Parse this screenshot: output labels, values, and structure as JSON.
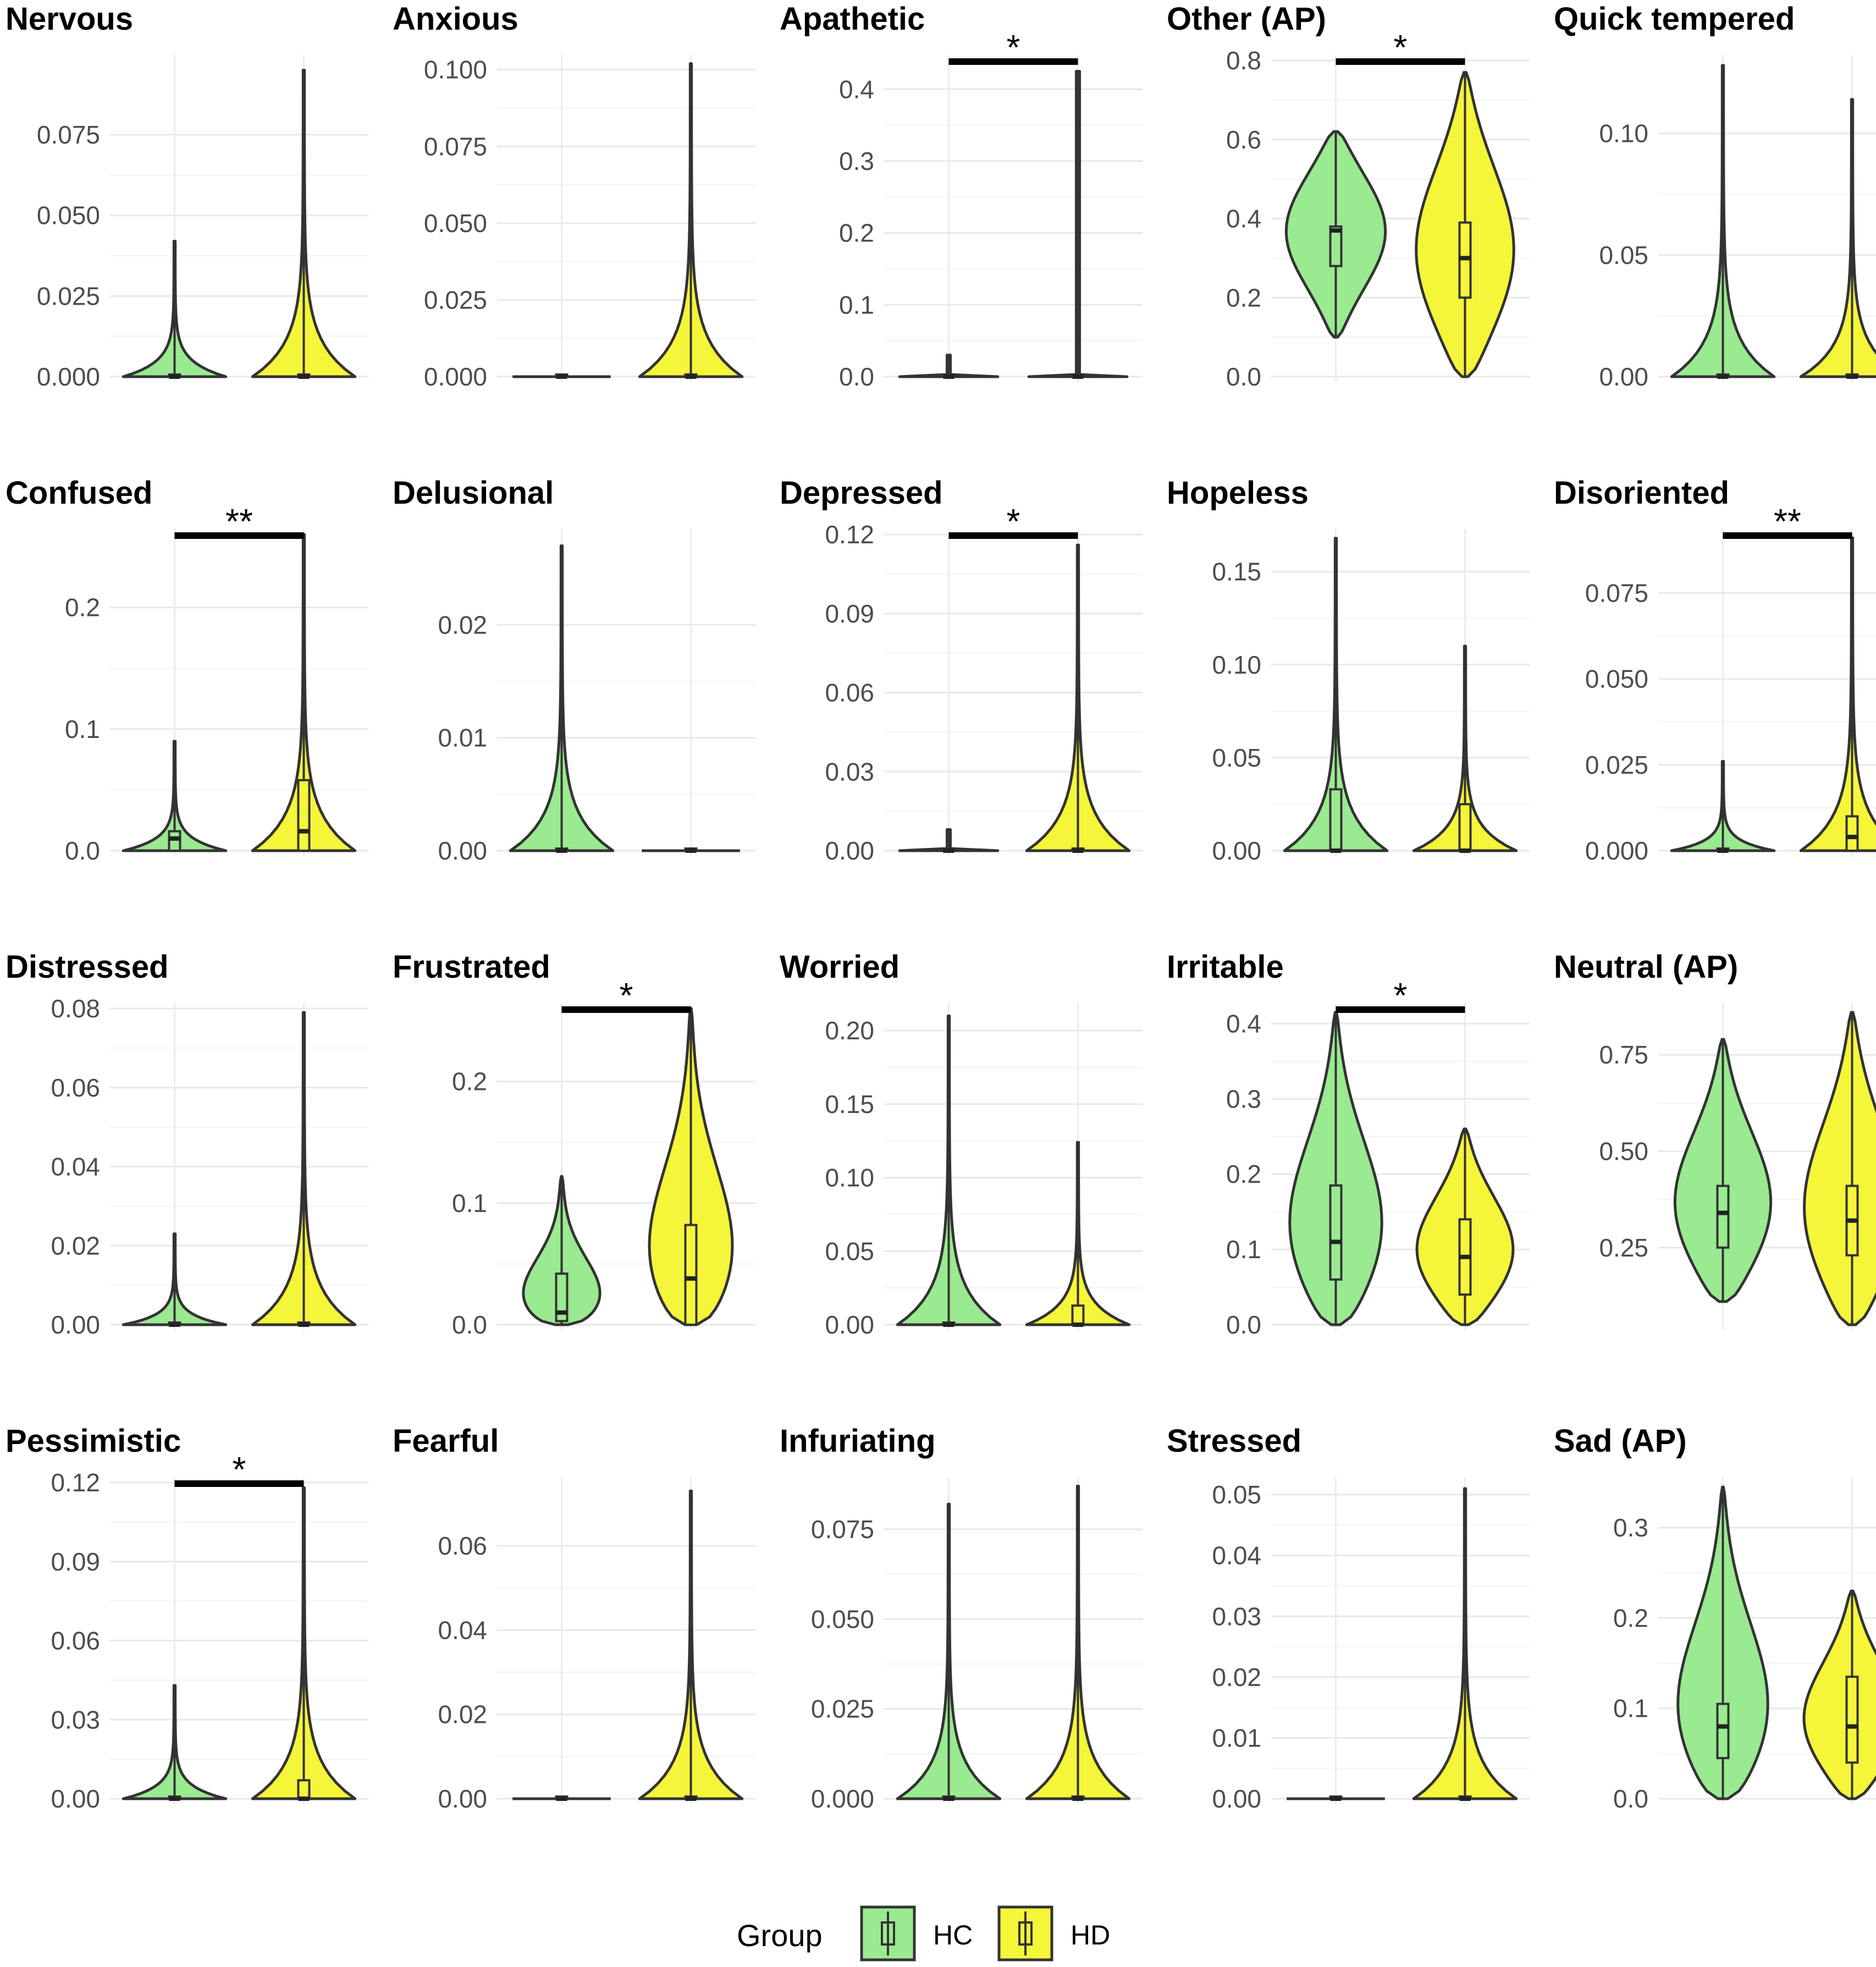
{
  "legend": {
    "title": "Group",
    "groups": [
      {
        "key": "HC",
        "label": "HC",
        "color": "#9aea91"
      },
      {
        "key": "HD",
        "label": "HD",
        "color": "#f5f53a"
      }
    ]
  },
  "chart_data": [
    {
      "type": "violin",
      "title": "Nervous",
      "ylim": [
        0,
        0.098
      ],
      "ticks": [
        0.0,
        0.025,
        0.05,
        0.075
      ],
      "tick_labels": [
        "0.000",
        "0.025",
        "0.050",
        "0.075"
      ],
      "series": [
        {
          "name": "HC",
          "max": 0.042,
          "q1": 0,
          "median": 0,
          "q3": 0,
          "shape": "spike"
        },
        {
          "name": "HD",
          "max": 0.095,
          "q1": 0,
          "median": 0,
          "q3": 0,
          "shape": "spike"
        }
      ]
    },
    {
      "type": "violin",
      "title": "Anxious",
      "ylim": [
        0,
        0.103
      ],
      "ticks": [
        0.0,
        0.025,
        0.05,
        0.075,
        0.1
      ],
      "tick_labels": [
        "0.000",
        "0.025",
        "0.050",
        "0.075",
        "0.100"
      ],
      "series": [
        {
          "name": "HC",
          "max": 0,
          "q1": 0,
          "median": 0,
          "q3": 0,
          "shape": "flat"
        },
        {
          "name": "HD",
          "max": 0.102,
          "q1": 0,
          "median": 0,
          "q3": 0,
          "shape": "spike"
        }
      ]
    },
    {
      "type": "violin",
      "title": "Apathetic",
      "ylim": [
        0,
        0.44
      ],
      "ticks": [
        0.0,
        0.1,
        0.2,
        0.3,
        0.4
      ],
      "tick_labels": [
        "0.0",
        "0.1",
        "0.2",
        "0.3",
        "0.4"
      ],
      "significance": "*",
      "series": [
        {
          "name": "HC",
          "max": 0.03,
          "q1": 0,
          "median": 0,
          "q3": 0,
          "shape": "flat"
        },
        {
          "name": "HD",
          "max": 0.425,
          "q1": 0,
          "median": 0,
          "q3": 0,
          "shape": "flat"
        }
      ]
    },
    {
      "type": "violin",
      "title": "Other (AP)",
      "ylim": [
        0,
        0.8
      ],
      "ticks": [
        0.0,
        0.2,
        0.4,
        0.6,
        0.8
      ],
      "tick_labels": [
        "0.0",
        "0.2",
        "0.4",
        "0.6",
        "0.8"
      ],
      "significance": "*",
      "series": [
        {
          "name": "HC",
          "min": 0.1,
          "max": 0.62,
          "q1": 0.28,
          "median": 0.37,
          "q3": 0.38,
          "shape": "body"
        },
        {
          "name": "HD",
          "min": 0,
          "max": 0.77,
          "q1": 0.2,
          "median": 0.3,
          "q3": 0.39,
          "shape": "body"
        }
      ]
    },
    {
      "type": "violin",
      "title": "Quick tempered",
      "ylim": [
        0,
        0.13
      ],
      "ticks": [
        0.0,
        0.05,
        0.1
      ],
      "tick_labels": [
        "0.00",
        "0.05",
        "0.10"
      ],
      "series": [
        {
          "name": "HC",
          "max": 0.128,
          "q1": 0,
          "median": 0,
          "q3": 0,
          "shape": "spike"
        },
        {
          "name": "HD",
          "max": 0.114,
          "q1": 0,
          "median": 0,
          "q3": 0,
          "shape": "spike"
        }
      ]
    },
    {
      "type": "violin",
      "title": "Confused",
      "ylim": [
        0,
        0.26
      ],
      "ticks": [
        0.0,
        0.1,
        0.2
      ],
      "tick_labels": [
        "0.0",
        "0.1",
        "0.2"
      ],
      "significance": "**",
      "series": [
        {
          "name": "HC",
          "max": 0.09,
          "q1": 0,
          "median": 0.01,
          "q3": 0.016,
          "shape": "spike"
        },
        {
          "name": "HD",
          "max": 0.26,
          "q1": 0,
          "median": 0.016,
          "q3": 0.058,
          "shape": "spike"
        }
      ]
    },
    {
      "type": "violin",
      "title": "Delusional",
      "ylim": [
        0,
        0.028
      ],
      "ticks": [
        0.0,
        0.01,
        0.02
      ],
      "tick_labels": [
        "0.00",
        "0.01",
        "0.02"
      ],
      "series": [
        {
          "name": "HC",
          "max": 0.027,
          "q1": 0,
          "median": 0,
          "q3": 0,
          "shape": "spike"
        },
        {
          "name": "HD",
          "max": 0,
          "q1": 0,
          "median": 0,
          "q3": 0,
          "shape": "flat"
        }
      ]
    },
    {
      "type": "violin",
      "title": "Depressed",
      "ylim": [
        0,
        0.12
      ],
      "ticks": [
        0.0,
        0.03,
        0.06,
        0.09,
        0.12
      ],
      "tick_labels": [
        "0.00",
        "0.03",
        "0.06",
        "0.09",
        "0.12"
      ],
      "significance": "*",
      "series": [
        {
          "name": "HC",
          "max": 0.008,
          "q1": 0,
          "median": 0,
          "q3": 0,
          "shape": "flat"
        },
        {
          "name": "HD",
          "max": 0.116,
          "q1": 0,
          "median": 0,
          "q3": 0,
          "shape": "spike"
        }
      ]
    },
    {
      "type": "violin",
      "title": "Hopeless",
      "ylim": [
        0,
        0.17
      ],
      "ticks": [
        0.0,
        0.05,
        0.1,
        0.15
      ],
      "tick_labels": [
        "0.00",
        "0.05",
        "0.10",
        "0.15"
      ],
      "series": [
        {
          "name": "HC",
          "max": 0.168,
          "q1": 0,
          "median": 0,
          "q3": 0.033,
          "shape": "spike"
        },
        {
          "name": "HD",
          "max": 0.11,
          "q1": 0,
          "median": 0,
          "q3": 0.025,
          "shape": "spike"
        }
      ]
    },
    {
      "type": "violin",
      "title": "Disoriented",
      "ylim": [
        0,
        0.092
      ],
      "ticks": [
        0.0,
        0.025,
        0.05,
        0.075
      ],
      "tick_labels": [
        "0.000",
        "0.025",
        "0.050",
        "0.075"
      ],
      "significance": "**",
      "series": [
        {
          "name": "HC",
          "max": 0.026,
          "q1": 0,
          "median": 0,
          "q3": 0,
          "shape": "spike"
        },
        {
          "name": "HD",
          "max": 0.091,
          "q1": 0,
          "median": 0.004,
          "q3": 0.01,
          "shape": "spike"
        }
      ]
    },
    {
      "type": "violin",
      "title": "Distressed",
      "ylim": [
        0,
        0.08
      ],
      "ticks": [
        0.0,
        0.02,
        0.04,
        0.06,
        0.08
      ],
      "tick_labels": [
        "0.00",
        "0.02",
        "0.04",
        "0.06",
        "0.08"
      ],
      "series": [
        {
          "name": "HC",
          "max": 0.023,
          "q1": 0,
          "median": 0,
          "q3": 0,
          "shape": "spike"
        },
        {
          "name": "HD",
          "max": 0.079,
          "q1": 0,
          "median": 0,
          "q3": 0,
          "shape": "spike"
        }
      ]
    },
    {
      "type": "violin",
      "title": "Frustrated",
      "ylim": [
        0,
        0.26
      ],
      "ticks": [
        0.0,
        0.1,
        0.2
      ],
      "tick_labels": [
        "0.0",
        "0.1",
        "0.2"
      ],
      "significance": "*",
      "series": [
        {
          "name": "HC",
          "max": 0.122,
          "q1": 0.003,
          "median": 0.01,
          "q3": 0.042,
          "shape": "body"
        },
        {
          "name": "HD",
          "max": 0.26,
          "q1": 0,
          "median": 0.038,
          "q3": 0.082,
          "shape": "body"
        }
      ]
    },
    {
      "type": "violin",
      "title": "Worried",
      "ylim": [
        0,
        0.215
      ],
      "ticks": [
        0.0,
        0.05,
        0.1,
        0.15,
        0.2
      ],
      "tick_labels": [
        "0.00",
        "0.05",
        "0.10",
        "0.15",
        "0.20"
      ],
      "series": [
        {
          "name": "HC",
          "max": 0.21,
          "q1": 0,
          "median": 0,
          "q3": 0,
          "shape": "spike"
        },
        {
          "name": "HD",
          "max": 0.124,
          "q1": 0,
          "median": 0,
          "q3": 0.013,
          "shape": "spike"
        }
      ]
    },
    {
      "type": "violin",
      "title": "Irritable",
      "ylim": [
        0,
        0.42
      ],
      "ticks": [
        0.0,
        0.1,
        0.2,
        0.3,
        0.4
      ],
      "tick_labels": [
        "0.0",
        "0.1",
        "0.2",
        "0.3",
        "0.4"
      ],
      "significance": "*",
      "series": [
        {
          "name": "HC",
          "min": 0,
          "max": 0.415,
          "q1": 0.06,
          "median": 0.11,
          "q3": 0.185,
          "shape": "body"
        },
        {
          "name": "HD",
          "min": 0,
          "max": 0.26,
          "q1": 0.04,
          "median": 0.09,
          "q3": 0.14,
          "shape": "body"
        }
      ]
    },
    {
      "type": "violin",
      "title": "Neutral (AP)",
      "ylim": [
        0.05,
        0.87
      ],
      "ticks": [
        0.25,
        0.5,
        0.75
      ],
      "tick_labels": [
        "0.25",
        "0.50",
        "0.75"
      ],
      "series": [
        {
          "name": "HC",
          "min": 0.11,
          "max": 0.79,
          "q1": 0.25,
          "median": 0.34,
          "q3": 0.41,
          "shape": "body"
        },
        {
          "name": "HD",
          "min": 0.05,
          "max": 0.86,
          "q1": 0.23,
          "median": 0.32,
          "q3": 0.41,
          "shape": "body"
        }
      ]
    },
    {
      "type": "violin",
      "title": "Pessimistic",
      "ylim": [
        0,
        0.12
      ],
      "ticks": [
        0.0,
        0.03,
        0.06,
        0.09,
        0.12
      ],
      "tick_labels": [
        "0.00",
        "0.03",
        "0.06",
        "0.09",
        "0.12"
      ],
      "significance": "*",
      "series": [
        {
          "name": "HC",
          "max": 0.043,
          "q1": 0,
          "median": 0,
          "q3": 0,
          "shape": "spike"
        },
        {
          "name": "HD",
          "max": 0.118,
          "q1": 0,
          "median": 0,
          "q3": 0.007,
          "shape": "spike"
        }
      ]
    },
    {
      "type": "violin",
      "title": "Fearful",
      "ylim": [
        0,
        0.075
      ],
      "ticks": [
        0.0,
        0.02,
        0.04,
        0.06
      ],
      "tick_labels": [
        "0.00",
        "0.02",
        "0.04",
        "0.06"
      ],
      "series": [
        {
          "name": "HC",
          "max": 0,
          "q1": 0,
          "median": 0,
          "q3": 0,
          "shape": "flat"
        },
        {
          "name": "HD",
          "max": 0.073,
          "q1": 0,
          "median": 0,
          "q3": 0,
          "shape": "spike"
        }
      ]
    },
    {
      "type": "violin",
      "title": "Infuriating",
      "ylim": [
        0,
        0.088
      ],
      "ticks": [
        0.0,
        0.025,
        0.05,
        0.075
      ],
      "tick_labels": [
        "0.000",
        "0.025",
        "0.050",
        "0.075"
      ],
      "series": [
        {
          "name": "HC",
          "max": 0.082,
          "q1": 0,
          "median": 0,
          "q3": 0,
          "shape": "spike"
        },
        {
          "name": "HD",
          "max": 0.087,
          "q1": 0,
          "median": 0,
          "q3": 0,
          "shape": "spike"
        }
      ]
    },
    {
      "type": "violin",
      "title": "Stressed",
      "ylim": [
        0,
        0.052
      ],
      "ticks": [
        0.0,
        0.01,
        0.02,
        0.03,
        0.04,
        0.05
      ],
      "tick_labels": [
        "0.00",
        "0.01",
        "0.02",
        "0.03",
        "0.04",
        "0.05"
      ],
      "series": [
        {
          "name": "HC",
          "max": 0,
          "q1": 0,
          "median": 0,
          "q3": 0,
          "shape": "flat"
        },
        {
          "name": "HD",
          "max": 0.051,
          "q1": 0,
          "median": 0,
          "q3": 0,
          "shape": "spike"
        }
      ]
    },
    {
      "type": "violin",
      "title": "Sad (AP)",
      "ylim": [
        0,
        0.35
      ],
      "ticks": [
        0.0,
        0.1,
        0.2,
        0.3
      ],
      "tick_labels": [
        "0.0",
        "0.1",
        "0.2",
        "0.3"
      ],
      "series": [
        {
          "name": "HC",
          "min": 0,
          "max": 0.345,
          "q1": 0.045,
          "median": 0.08,
          "q3": 0.105,
          "shape": "body"
        },
        {
          "name": "HD",
          "min": 0,
          "max": 0.23,
          "q1": 0.04,
          "median": 0.08,
          "q3": 0.135,
          "shape": "body"
        }
      ]
    }
  ]
}
